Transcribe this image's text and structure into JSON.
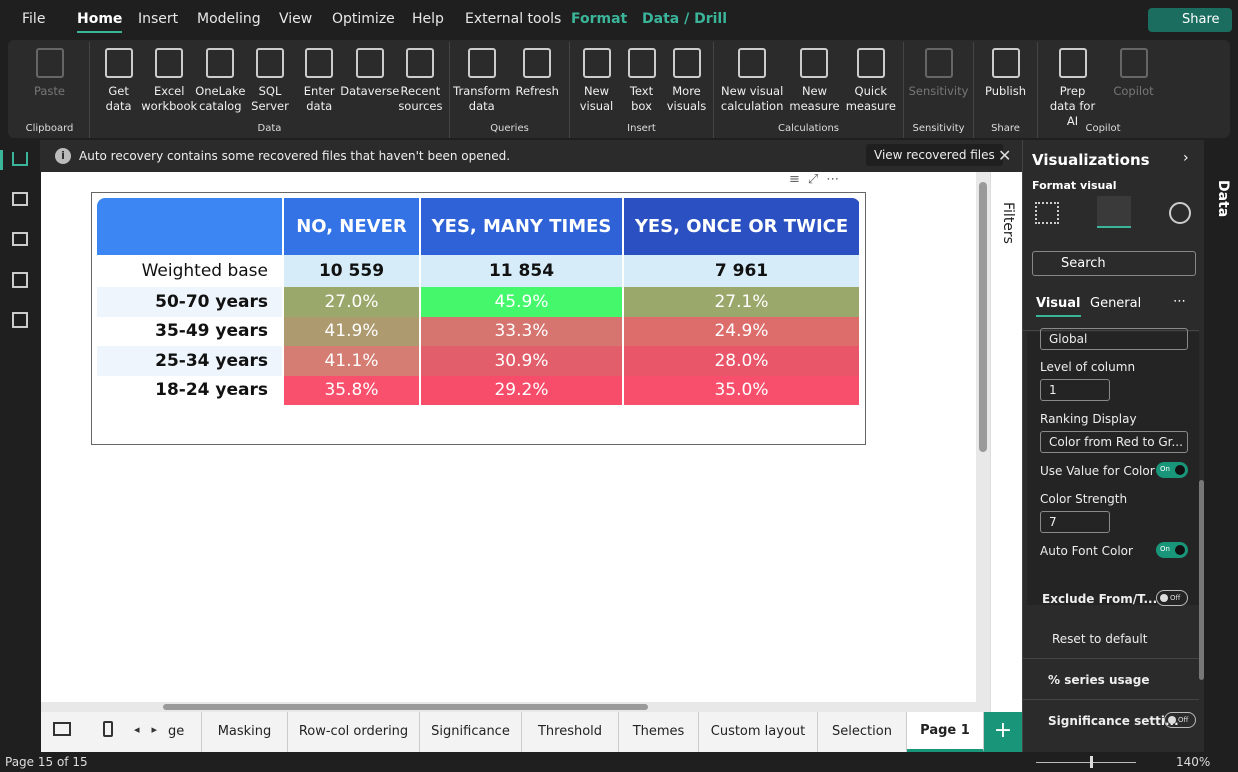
{
  "menu": {
    "items": [
      "File",
      "Home",
      "Insert",
      "Modeling",
      "View",
      "Optimize",
      "Help",
      "External tools",
      "Format",
      "Data / Drill"
    ],
    "share": "Share"
  },
  "ribbon": {
    "groups": [
      {
        "label": "Clipboard",
        "buttons": [
          "Paste"
        ]
      },
      {
        "label": "Data",
        "buttons": [
          "Get data",
          "Excel workbook",
          "OneLake catalog",
          "SQL Server",
          "Enter data",
          "Dataverse",
          "Recent sources"
        ]
      },
      {
        "label": "Queries",
        "buttons": [
          "Transform data",
          "Refresh"
        ]
      },
      {
        "label": "Insert",
        "buttons": [
          "New visual",
          "Text box",
          "More visuals"
        ]
      },
      {
        "label": "Calculations",
        "buttons": [
          "New visual calculation",
          "New measure",
          "Quick measure"
        ]
      },
      {
        "label": "Sensitivity",
        "buttons": [
          "Sensitivity"
        ]
      },
      {
        "label": "Share",
        "buttons": [
          "Publish"
        ]
      },
      {
        "label": "Copilot",
        "buttons": [
          "Prep data for AI",
          "Copilot"
        ]
      }
    ]
  },
  "notification": {
    "message": "Auto recovery contains some recovered files that haven't been opened.",
    "action": "View recovered files"
  },
  "table": {
    "header": [
      "NO, NEVER",
      "YES, MANY TIMES",
      "YES, ONCE OR TWICE"
    ],
    "rows": [
      [
        "Weighted base",
        "10 559",
        "11 854",
        "7 961"
      ],
      [
        "50-70 years",
        "27.0%",
        "45.9%",
        "27.1%"
      ],
      [
        "35-49 years",
        "41.9%",
        "33.3%",
        "24.9%"
      ],
      [
        "25-34 years",
        "41.1%",
        "30.9%",
        "28.0%"
      ],
      [
        "18-24 years",
        "35.8%",
        "29.2%",
        "35.0%"
      ]
    ]
  },
  "filters": "Filters",
  "visualizations": {
    "title": "Visualizations",
    "subtitle": "Format visual",
    "search": "Search",
    "tabs": [
      "Visual",
      "General"
    ],
    "scope": "Global",
    "level_label": "Level of column",
    "level_value": "1",
    "ranking_label": "Ranking Display",
    "ranking_value": "Color from Red to Gr...",
    "use_value_label": "Use Value for Color",
    "use_value_state": "On",
    "strength_label": "Color Strength",
    "strength_value": "7",
    "auto_font_label": "Auto Font Color",
    "auto_font_state": "On",
    "exclude_label": "Exclude From/T...",
    "exclude_state": "Off",
    "reset": "Reset to default",
    "series_usage": "% series usage",
    "significance": "Significance setti...",
    "significance_state": "Off"
  },
  "data_pane": "Data",
  "page_tabs": [
    "ge",
    "Masking",
    "Row-col ordering",
    "Significance",
    "Threshold",
    "Themes",
    "Custom layout",
    "Selection",
    "Page 1"
  ],
  "status": {
    "page": "Page 15 of 15",
    "zoom": "140%"
  }
}
